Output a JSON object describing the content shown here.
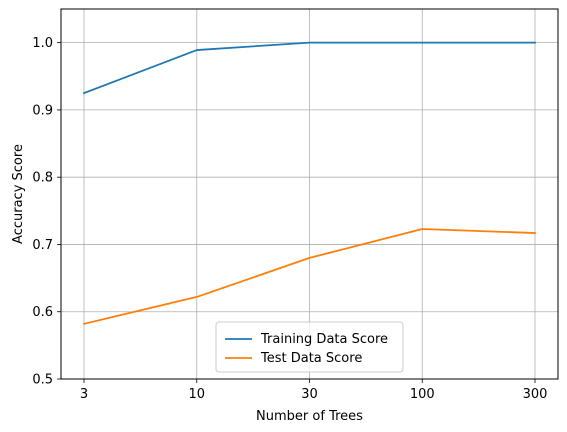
{
  "chart_data": {
    "type": "line",
    "title": "",
    "xlabel": "Number of Trees",
    "ylabel": "Accuracy Score",
    "x_categories": [
      "3",
      "10",
      "30",
      "100",
      "300"
    ],
    "y_ticks": [
      "0.5",
      "0.6",
      "0.7",
      "0.8",
      "0.9",
      "1.0"
    ],
    "ylim": [
      0.5,
      1.05
    ],
    "grid": true,
    "legend_position": "bottom-center",
    "series": [
      {
        "name": "Training Data Score",
        "color": "#1f77b4",
        "values": [
          0.925,
          0.989,
          1.0,
          1.0,
          1.0
        ]
      },
      {
        "name": "Test Data Score",
        "color": "#ff7f0e",
        "values": [
          0.582,
          0.622,
          0.68,
          0.723,
          0.717
        ]
      }
    ]
  }
}
